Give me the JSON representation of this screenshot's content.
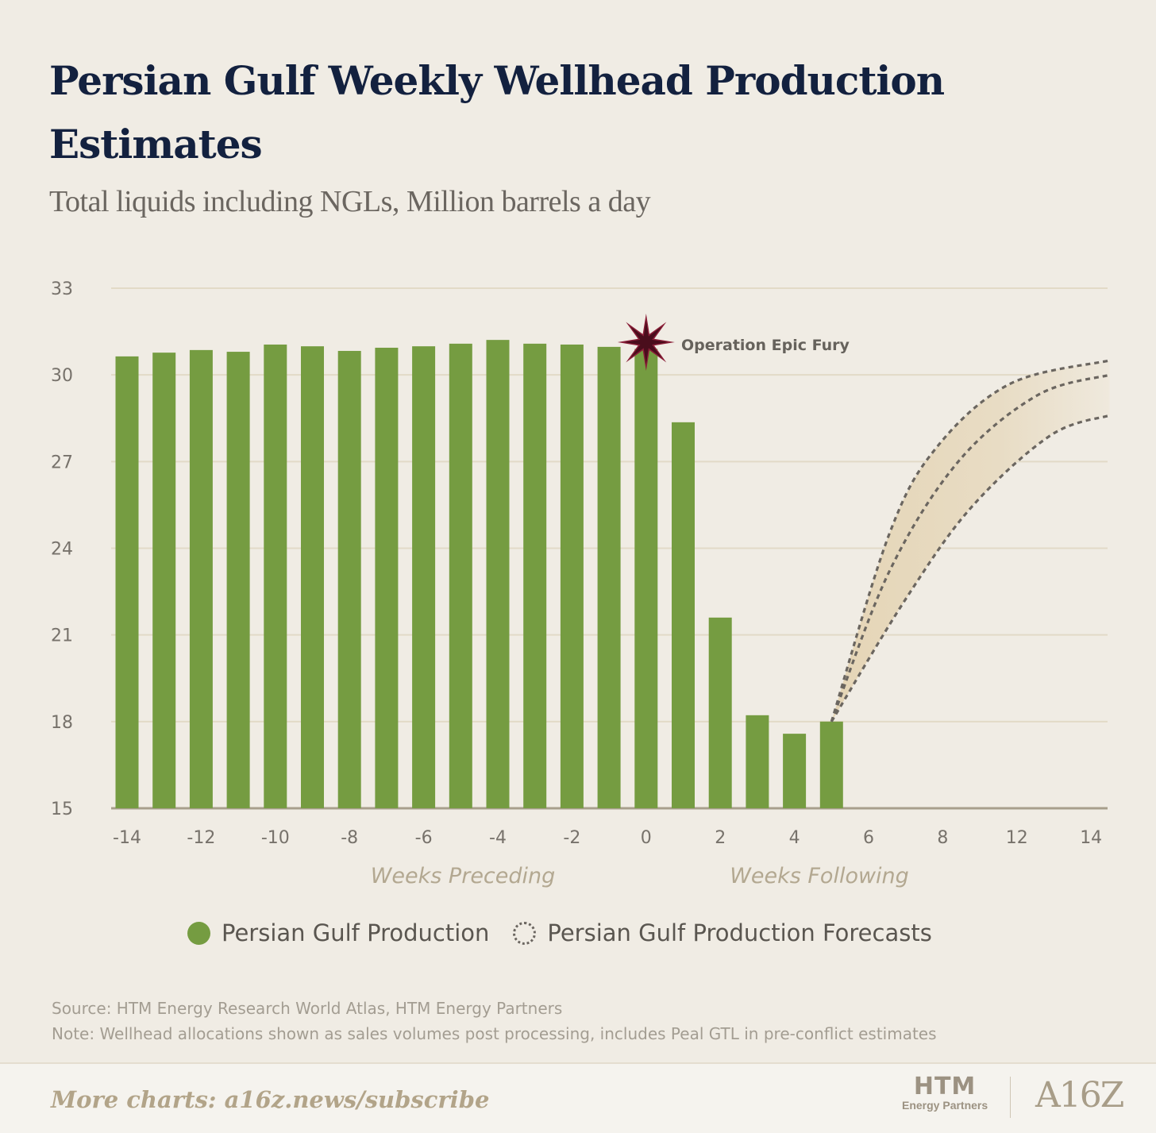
{
  "title": "Persian Gulf Weekly Wellhead Production Estimates",
  "subtitle": "Total liquids including NGLs, Million barrels a day",
  "chart_data": {
    "type": "bar",
    "title": "Persian Gulf Weekly Wellhead Production Estimates",
    "ylabel": "Total liquids including NGLs, Million barrels a day",
    "ylim": [
      15,
      33
    ],
    "yticks": [
      15,
      18,
      21,
      24,
      27,
      30,
      33
    ],
    "grid": true,
    "x_tick_labels": [
      "-14",
      "-12",
      "-10",
      "-8",
      "-6",
      "-4",
      "-2",
      "0",
      "2",
      "4",
      "6",
      "8",
      "12",
      "14"
    ],
    "x_axis_groups": [
      "Weeks Preceding",
      "Weeks Following"
    ],
    "categories": [
      -14,
      -13,
      -12,
      -11,
      -10,
      -9,
      -8,
      -7,
      -6,
      -5,
      -4,
      -3,
      -2,
      -1,
      0,
      1,
      2,
      3,
      4,
      5
    ],
    "series": [
      {
        "name": "Persian Gulf Production",
        "values": [
          30.64,
          30.77,
          30.86,
          30.8,
          31.05,
          30.99,
          30.83,
          30.94,
          30.99,
          31.08,
          31.21,
          31.08,
          31.05,
          30.97,
          30.9,
          28.36,
          21.6,
          18.22,
          17.58,
          18.0
        ],
        "color": "#759c41"
      }
    ],
    "forecasts": {
      "name": "Persian Gulf Production Forecasts",
      "x_units": "axis slot index (0 = week -14, one slot per week)",
      "scenarios": [
        {
          "name": "high",
          "x": [
            19,
            20.56,
            21.84,
            23.83,
            26.5
          ],
          "y": [
            18.0,
            24.5,
            27.5,
            29.7,
            30.5
          ]
        },
        {
          "name": "mid",
          "x": [
            19,
            20.56,
            22.42,
            24.56,
            26.5
          ],
          "y": [
            18.0,
            23.2,
            27.0,
            29.3,
            30.0
          ]
        },
        {
          "name": "low",
          "x": [
            19,
            20.98,
            22.76,
            24.9,
            26.5
          ],
          "y": [
            18.0,
            22.2,
            25.4,
            27.9,
            28.6
          ]
        }
      ]
    },
    "annotation": {
      "label": "Operation Epic Fury",
      "week": 0
    },
    "legend": [
      "Persian Gulf Production",
      "Persian Gulf Production Forecasts"
    ],
    "legend_position": "bottom"
  },
  "axis_titles": {
    "preceding": "Weeks Preceding",
    "following": "Weeks Following"
  },
  "legend": {
    "actual": "Persian Gulf Production",
    "forecast": "Persian Gulf Production Forecasts"
  },
  "source": "Source: HTM Energy Research World Atlas, HTM Energy Partners",
  "note": "Note: Wellhead allocations shown as sales volumes post processing, includes Peal GTL in pre-conflict estimates",
  "footer": {
    "cta": "More charts: a16z.news/subscribe",
    "logo1": "HTM",
    "logo1_sub": "Energy Partners",
    "logo2": "A16Z"
  },
  "colors": {
    "bar": "#759c41",
    "title": "#13213f",
    "star": "#8a1f38",
    "forecast_band": "#e6d7bb"
  }
}
